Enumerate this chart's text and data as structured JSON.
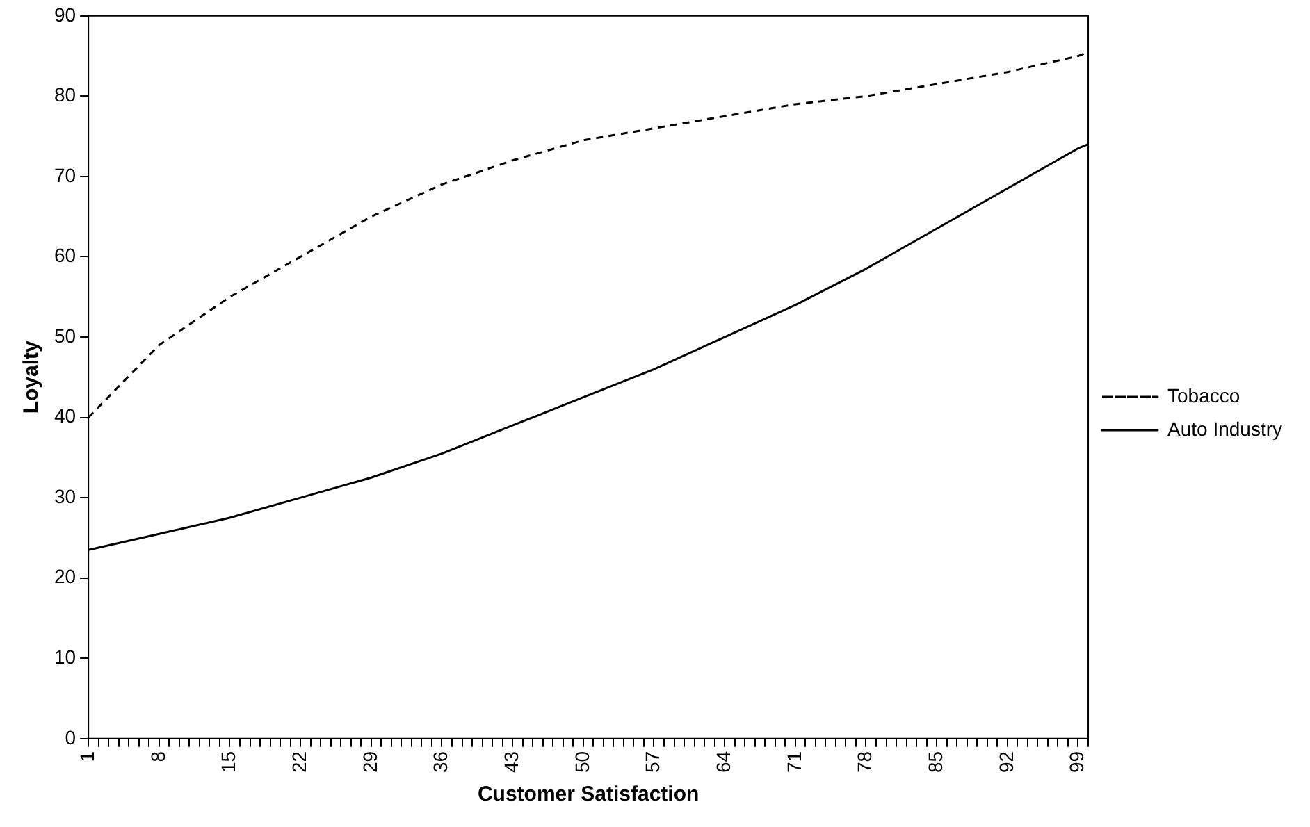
{
  "chart_data": {
    "type": "line",
    "xlabel": "Customer Satisfaction",
    "ylabel": "Loyalty",
    "xlim": [
      1,
      100
    ],
    "xticks": [
      1,
      {
        "value": 2,
        "label": null
      },
      {
        "value": 3,
        "label": null
      },
      {
        "value": 4,
        "label": null
      },
      {
        "value": 5,
        "label": null
      },
      {
        "value": 6,
        "label": null
      },
      {
        "value": 7,
        "label": null
      },
      8,
      {
        "value": 9,
        "label": null
      },
      {
        "value": 10,
        "label": null
      },
      {
        "value": 11,
        "label": null
      },
      {
        "value": 12,
        "label": null
      },
      {
        "value": 13,
        "label": null
      },
      {
        "value": 14,
        "label": null
      },
      15,
      {
        "value": 16,
        "label": null
      },
      {
        "value": 17,
        "label": null
      },
      {
        "value": 18,
        "label": null
      },
      {
        "value": 19,
        "label": null
      },
      {
        "value": 20,
        "label": null
      },
      {
        "value": 21,
        "label": null
      },
      22,
      {
        "value": 23,
        "label": null
      },
      {
        "value": 24,
        "label": null
      },
      {
        "value": 25,
        "label": null
      },
      {
        "value": 26,
        "label": null
      },
      {
        "value": 27,
        "label": null
      },
      {
        "value": 28,
        "label": null
      },
      29,
      {
        "value": 30,
        "label": null
      },
      {
        "value": 31,
        "label": null
      },
      {
        "value": 32,
        "label": null
      },
      {
        "value": 33,
        "label": null
      },
      {
        "value": 34,
        "label": null
      },
      {
        "value": 35,
        "label": null
      },
      36,
      {
        "value": 37,
        "label": null
      },
      {
        "value": 38,
        "label": null
      },
      {
        "value": 39,
        "label": null
      },
      {
        "value": 40,
        "label": null
      },
      {
        "value": 41,
        "label": null
      },
      {
        "value": 42,
        "label": null
      },
      43,
      {
        "value": 44,
        "label": null
      },
      {
        "value": 45,
        "label": null
      },
      {
        "value": 46,
        "label": null
      },
      {
        "value": 47,
        "label": null
      },
      {
        "value": 48,
        "label": null
      },
      {
        "value": 49,
        "label": null
      },
      50,
      {
        "value": 51,
        "label": null
      },
      {
        "value": 52,
        "label": null
      },
      {
        "value": 53,
        "label": null
      },
      {
        "value": 54,
        "label": null
      },
      {
        "value": 55,
        "label": null
      },
      {
        "value": 56,
        "label": null
      },
      57,
      {
        "value": 58,
        "label": null
      },
      {
        "value": 59,
        "label": null
      },
      {
        "value": 60,
        "label": null
      },
      {
        "value": 61,
        "label": null
      },
      {
        "value": 62,
        "label": null
      },
      {
        "value": 63,
        "label": null
      },
      64,
      {
        "value": 65,
        "label": null
      },
      {
        "value": 66,
        "label": null
      },
      {
        "value": 67,
        "label": null
      },
      {
        "value": 68,
        "label": null
      },
      {
        "value": 69,
        "label": null
      },
      {
        "value": 70,
        "label": null
      },
      71,
      {
        "value": 72,
        "label": null
      },
      {
        "value": 73,
        "label": null
      },
      {
        "value": 74,
        "label": null
      },
      {
        "value": 75,
        "label": null
      },
      {
        "value": 76,
        "label": null
      },
      {
        "value": 77,
        "label": null
      },
      78,
      {
        "value": 79,
        "label": null
      },
      {
        "value": 80,
        "label": null
      },
      {
        "value": 81,
        "label": null
      },
      {
        "value": 82,
        "label": null
      },
      {
        "value": 83,
        "label": null
      },
      {
        "value": 84,
        "label": null
      },
      85,
      {
        "value": 86,
        "label": null
      },
      {
        "value": 87,
        "label": null
      },
      {
        "value": 88,
        "label": null
      },
      {
        "value": 89,
        "label": null
      },
      {
        "value": 90,
        "label": null
      },
      {
        "value": 91,
        "label": null
      },
      92,
      {
        "value": 93,
        "label": null
      },
      {
        "value": 94,
        "label": null
      },
      {
        "value": 95,
        "label": null
      },
      {
        "value": 96,
        "label": null
      },
      {
        "value": 97,
        "label": null
      },
      {
        "value": 98,
        "label": null
      },
      99,
      {
        "value": 100,
        "label": null
      }
    ],
    "ylim": [
      0,
      90
    ],
    "yticks": [
      0,
      10,
      20,
      30,
      40,
      50,
      60,
      70,
      80,
      90
    ],
    "grid": false,
    "legend": "right",
    "marker": "none",
    "x": [
      1,
      8,
      15,
      22,
      29,
      36,
      43,
      50,
      57,
      64,
      71,
      78,
      85,
      92,
      99,
      100
    ],
    "series": [
      {
        "name": "Tobacco",
        "color": "#000000",
        "line_style": "dashed",
        "values": [
          40,
          49,
          55,
          60,
          65,
          69,
          72,
          74.5,
          76,
          77.5,
          79,
          80,
          81.5,
          83,
          85,
          85.5
        ]
      },
      {
        "name": "Auto Industry",
        "color": "#000000",
        "line_style": "solid",
        "values": [
          23.5,
          25.5,
          27.5,
          30,
          32.5,
          35.5,
          39,
          42.5,
          46,
          50,
          54,
          58.5,
          63.5,
          68.5,
          73.5,
          74
        ]
      }
    ]
  }
}
